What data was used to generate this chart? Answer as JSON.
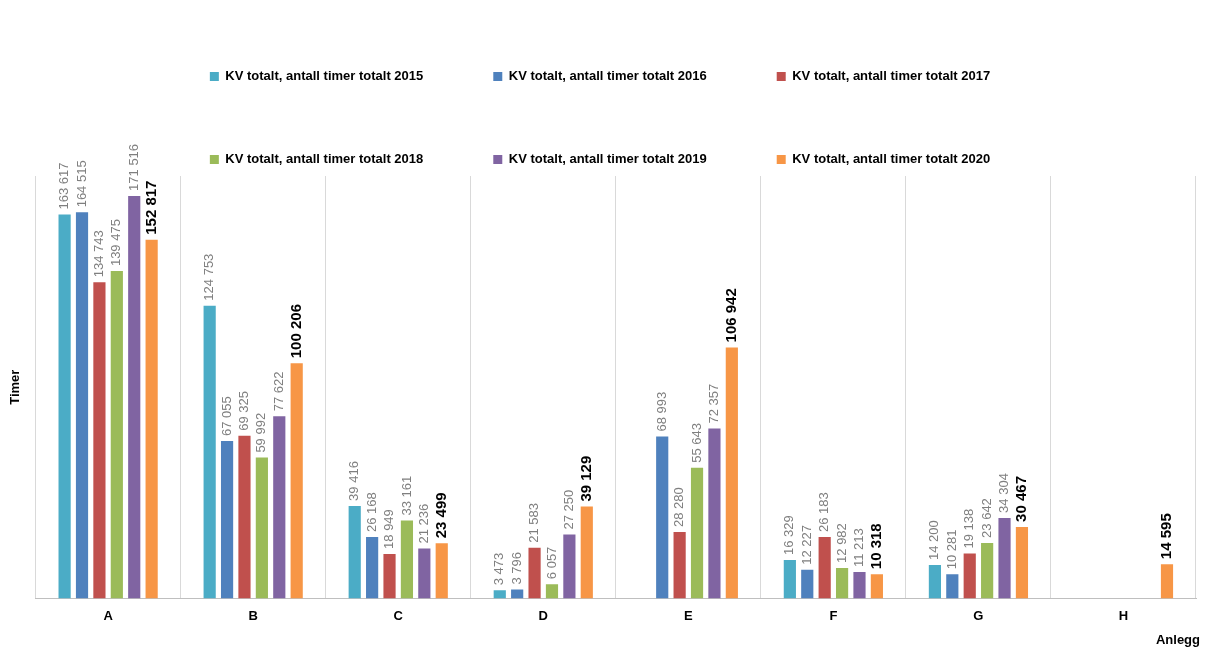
{
  "chart_data": {
    "type": "bar",
    "ylabel": "Timer",
    "xlabel": "Anlegg",
    "categories": [
      "A",
      "B",
      "C",
      "D",
      "E",
      "F",
      "G",
      "H"
    ],
    "legend": "top",
    "grid": "x",
    "tick_labels": "x",
    "series": [
      {
        "name": "KV totalt, antall timer totalt 2015",
        "color": "#4bacc6",
        "values": [
          163617,
          124753,
          39416,
          3473,
          null,
          16329,
          14200,
          null
        ],
        "value_labels": [
          "163 617",
          "124 753",
          "39 416",
          "3 473",
          null,
          "16 329",
          "14 200",
          null
        ]
      },
      {
        "name": "KV totalt, antall timer totalt 2016",
        "color": "#4f81bd",
        "values": [
          164515,
          67055,
          26168,
          3796,
          68993,
          12227,
          10281,
          null
        ],
        "value_labels": [
          "164 515",
          "67 055",
          "26 168",
          "3 796",
          "68 993",
          "12 227",
          "10 281",
          null
        ]
      },
      {
        "name": "KV totalt, antall timer totalt 2017",
        "color": "#c0504d",
        "values": [
          134743,
          69325,
          18949,
          21583,
          28280,
          26183,
          19138,
          null
        ],
        "value_labels": [
          "134 743",
          "69 325",
          "18 949",
          "21 583",
          "28 280",
          "26 183",
          "19 138",
          null
        ]
      },
      {
        "name": "KV totalt, antall timer totalt 2018",
        "color": "#9bbb59",
        "values": [
          139475,
          59992,
          33161,
          6057,
          55643,
          12982,
          23642,
          null
        ],
        "value_labels": [
          "139 475",
          "59 992",
          "33 161",
          "6 057",
          "55 643",
          "12 982",
          "23 642",
          null
        ]
      },
      {
        "name": "KV totalt, antall timer totalt 2019",
        "color": "#8064a2",
        "values": [
          171516,
          77622,
          21236,
          27250,
          72357,
          11213,
          34304,
          null
        ],
        "value_labels": [
          "171 516",
          "77 622",
          "21 236",
          "27 250",
          "72 357",
          "11 213",
          "34 304",
          null
        ]
      },
      {
        "name": "KV totalt, antall timer totalt 2020",
        "color": "#f79646",
        "values": [
          152817,
          100206,
          23499,
          39129,
          106942,
          10318,
          30467,
          14595
        ],
        "value_labels": [
          "152 817",
          "100 206",
          "23 499",
          "39 129",
          "106 942",
          "10 318",
          "30 467",
          "14 595"
        ]
      }
    ]
  }
}
